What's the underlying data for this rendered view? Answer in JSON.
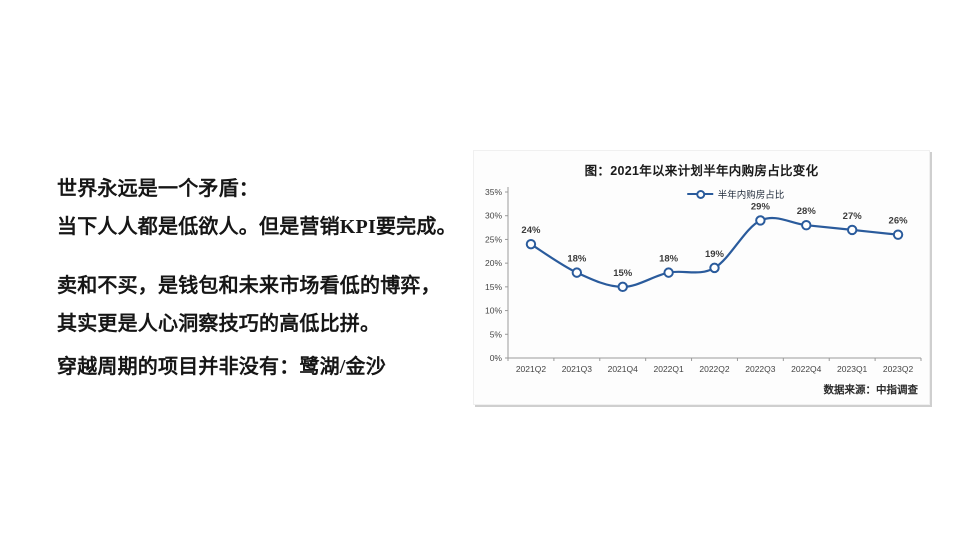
{
  "slide": {
    "text_block": {
      "lines": [
        "世界永远是一个矛盾：",
        "当下人人都是低欲人。但是营销KPI要完成。",
        "卖和不买，是钱包和未来市场看低的博弈，",
        "其实更是人心洞察技巧的高低比拼。",
        "穿越周期的项目并非没有：鹭湖/金沙"
      ]
    }
  },
  "chart_data": {
    "type": "line",
    "title": "图：2021年以来计划半年内购房占比变化",
    "legend": "半年内购房占比",
    "legend_position": "top-center",
    "categories": [
      "2021Q2",
      "2021Q3",
      "2021Q4",
      "2022Q1",
      "2022Q2",
      "2022Q3",
      "2022Q4",
      "2023Q1",
      "2023Q2"
    ],
    "series": [
      {
        "name": "半年内购房占比",
        "values": [
          24,
          18,
          15,
          18,
          19,
          29,
          28,
          27,
          26
        ]
      }
    ],
    "data_labels": [
      "24%",
      "18%",
      "15%",
      "18%",
      "19%",
      "29%",
      "28%",
      "27%",
      "26%"
    ],
    "ylim": [
      0,
      35
    ],
    "ytick_step": 5,
    "ytick_labels": [
      "0%",
      "5%",
      "10%",
      "15%",
      "20%",
      "25%",
      "30%",
      "35%"
    ],
    "grid": false,
    "line_color": "#2a5b9c",
    "marker": "open-circle",
    "axis_color": "#9a9a9a",
    "source": "数据来源：中指调查"
  }
}
